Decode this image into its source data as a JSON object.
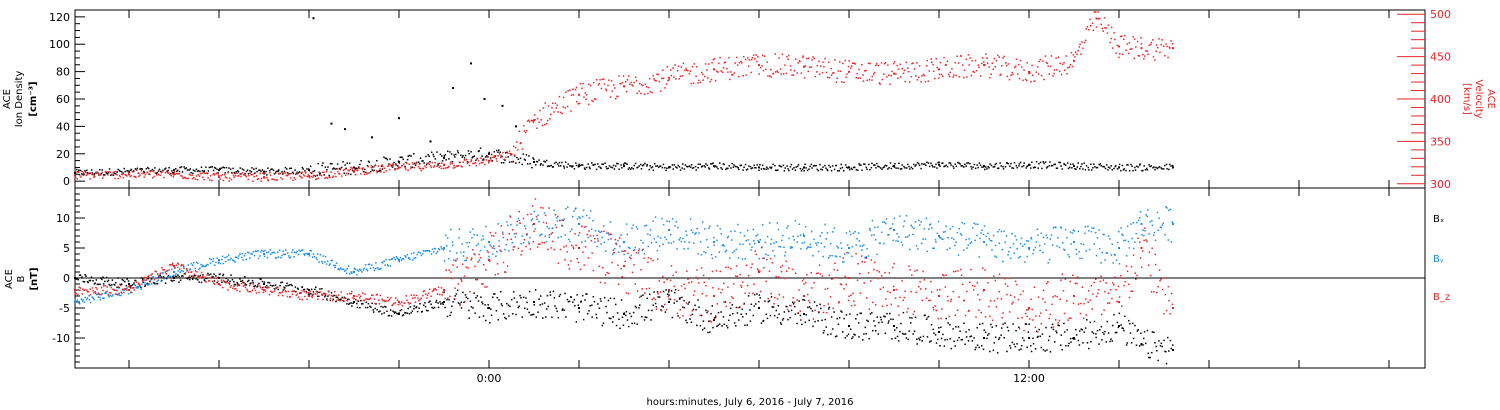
{
  "xlabel": "hours:minutes, July  6, 2016 - July  7, 2016",
  "x_ticks": [
    "0:00",
    "12:00"
  ],
  "colors": {
    "black": "#000000",
    "red": "#e8262a",
    "blue": "#1e8ee6"
  },
  "chart_data": [
    {
      "type": "scatter",
      "panel": "top",
      "ylabel_left": [
        "ACE",
        "Ion Density",
        "[cm⁻³]"
      ],
      "ylabel_right": [
        "ACE",
        "Velocity",
        "[km/s]"
      ],
      "ylim_left": [
        -5,
        125
      ],
      "ylim_right": [
        295,
        505
      ],
      "yticks_left": [
        0,
        20,
        40,
        60,
        80,
        100,
        120
      ],
      "yticks_right": [
        300,
        350,
        400,
        450,
        500
      ],
      "x_unit": "hours from July 6, 2016 0:00",
      "xlim": [
        -9.2,
        20.8
      ],
      "series": [
        {
          "name": "Ion Density",
          "color": "#000000",
          "axis": "left",
          "x": [
            -9.2,
            -8,
            -7,
            -6,
            -5,
            -4,
            -3,
            -2,
            -1,
            0,
            1,
            2,
            3,
            4,
            5,
            6,
            7,
            8,
            9,
            10,
            11,
            12,
            13,
            14,
            15.2
          ],
          "y": [
            6,
            7,
            8,
            8,
            7,
            8,
            10,
            14,
            17,
            20,
            14,
            11,
            11,
            10,
            11,
            10,
            10,
            10,
            11,
            12,
            11,
            12,
            11,
            10,
            10
          ]
        },
        {
          "name": "Velocity",
          "color": "#e8262a",
          "axis": "right",
          "x": [
            -9.2,
            -8,
            -7,
            -6,
            -5,
            -4,
            -3,
            -2,
            -1,
            0,
            0.5,
            1,
            2,
            3,
            4,
            5,
            6,
            7,
            8,
            9,
            10,
            11,
            12,
            13,
            13.5,
            14,
            14.5,
            15.2
          ],
          "y": [
            310,
            311,
            311,
            308,
            308,
            309,
            315,
            319,
            322,
            327,
            335,
            375,
            405,
            415,
            425,
            435,
            440,
            438,
            432,
            430,
            435,
            440,
            432,
            445,
            495,
            462,
            460,
            460
          ]
        }
      ]
    },
    {
      "type": "scatter",
      "panel": "bottom",
      "ylabel_left": [
        "ACE",
        "B",
        "[nT]"
      ],
      "ylim": [
        -15,
        15
      ],
      "yticks": [
        -10,
        -5,
        0,
        5,
        10
      ],
      "x_unit": "hours from July 6, 2016 0:00",
      "xlim": [
        -9.2,
        20.8
      ],
      "legend": [
        "Bₓ",
        "Bᵧ",
        "B_z"
      ],
      "legend_position": "right",
      "series": [
        {
          "name": "Bx",
          "color": "#000000",
          "x": [
            -9.2,
            -8,
            -7,
            -6,
            -5,
            -4,
            -3,
            -2,
            -1,
            0,
            1,
            2,
            3,
            4,
            5,
            6,
            7,
            8,
            9,
            10,
            11,
            12,
            13,
            14,
            14.5,
            15.2
          ],
          "y": [
            0,
            -1,
            0,
            0,
            -1,
            -2,
            -4,
            -6,
            -4,
            -5,
            -4,
            -5,
            -6,
            -4,
            -7,
            -5,
            -6,
            -8,
            -8,
            -9,
            -10,
            -10,
            -10,
            -8,
            -11,
            -12
          ]
        },
        {
          "name": "By",
          "color": "#1e8ee6",
          "x": [
            -9.2,
            -8,
            -7,
            -6,
            -5,
            -4,
            -3,
            -2,
            -1,
            0,
            1,
            2,
            3,
            4,
            5,
            6,
            7,
            8,
            9,
            10,
            11,
            12,
            13,
            14,
            14.5,
            15.2
          ],
          "y": [
            -4,
            -2,
            1,
            3,
            4,
            4,
            1,
            3,
            5,
            6,
            9,
            9,
            6,
            8,
            6,
            6,
            7,
            5,
            8,
            7,
            6,
            5,
            6,
            5,
            9,
            9
          ]
        },
        {
          "name": "Bz",
          "color": "#e8262a",
          "x": [
            -9.2,
            -8,
            -7,
            -6,
            -5,
            -4,
            -3,
            -2,
            -1,
            0,
            1,
            2,
            3,
            4,
            5,
            6,
            7,
            8,
            9,
            10,
            11,
            12,
            13,
            14,
            14.5,
            15.2
          ],
          "y": [
            -2,
            -2,
            2,
            -1,
            -2,
            -3,
            -3,
            -4,
            -2,
            3,
            9,
            5,
            2,
            -2,
            -3,
            1,
            -3,
            0,
            -2,
            -3,
            -2,
            -5,
            -3,
            -4,
            5,
            -5
          ]
        }
      ]
    }
  ]
}
